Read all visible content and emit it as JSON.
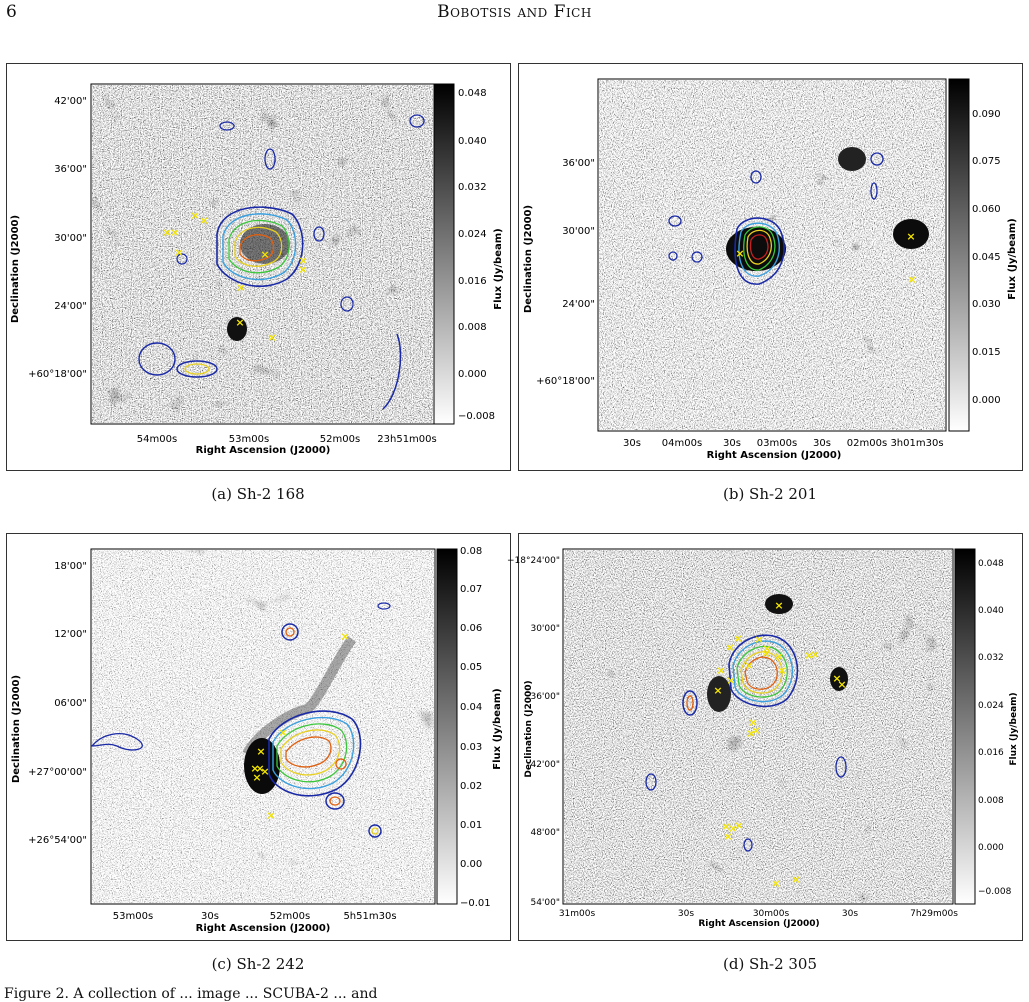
{
  "page": {
    "number": "6",
    "running_head": "Bobotsis and Fich",
    "bottom_text": "Figure 2. A collection of ... image ... SCUBA-2 ... and"
  },
  "figures": [
    {
      "caption": "(a) Sh-2 168",
      "xlabel": "Right Ascension (J2000)",
      "ylabel": "Declination (J2000)",
      "cbar_label": "Flux (Jy/beam)",
      "xticks": [
        "54m00s",
        "53m00s",
        "52m00s",
        "23h51m00s"
      ],
      "yticks": [
        "42'00\"",
        "36'00\"",
        "30'00\"",
        "24'00\"",
        "+60°18'00\""
      ],
      "cbar_ticks": [
        "0.048",
        "0.040",
        "0.032",
        "0.024",
        "0.016",
        "0.008",
        "0.000",
        "−0.008"
      ]
    },
    {
      "caption": "(b) Sh-2 201",
      "xlabel": "Right Ascension (J2000)",
      "ylabel": "Declination (J2000)",
      "cbar_label": "Flux (Jy/beam)",
      "xticks": [
        "30s",
        "04m00s",
        "30s",
        "03m00s",
        "30s",
        "02m00s",
        "3h01m30s"
      ],
      "yticks": [
        "36'00\"",
        "30'00\"",
        "24'00\"",
        "+60°18'00\""
      ],
      "cbar_ticks": [
        "0.090",
        "0.075",
        "0.060",
        "0.045",
        "0.030",
        "0.015",
        "0.000"
      ]
    },
    {
      "caption": "(c) Sh-2 242",
      "xlabel": "Right Ascension (J2000)",
      "ylabel": "Declination (J2000)",
      "cbar_label": "Flux (Jy/beam)",
      "xticks": [
        "53m00s",
        "30s",
        "52m00s",
        "5h51m30s"
      ],
      "yticks": [
        "18'00\"",
        "12'00\"",
        "06'00\"",
        "+27°00'00\"",
        "+26°54'00\""
      ],
      "cbar_ticks": [
        "0.08",
        "0.07",
        "0.06",
        "0.05",
        "0.04",
        "0.03",
        "0.02",
        "0.01",
        "0.00",
        "−0.01"
      ]
    },
    {
      "caption": "(d) Sh-2 305",
      "xlabel": "Right Ascension (J2000)",
      "ylabel": "Declination (J2000)",
      "cbar_label": "Flux (Jy/beam)",
      "xticks": [
        "31m00s",
        "30s",
        "30m00s",
        "30s",
        "7h29m00s"
      ],
      "yticks": [
        "−18°24'00\"",
        "30'00\"",
        "36'00\"",
        "42'00\"",
        "48'00\"",
        "54'00\""
      ],
      "cbar_ticks": [
        "0.048",
        "0.040",
        "0.032",
        "0.024",
        "0.016",
        "0.008",
        "0.000",
        "−0.008"
      ]
    }
  ]
}
